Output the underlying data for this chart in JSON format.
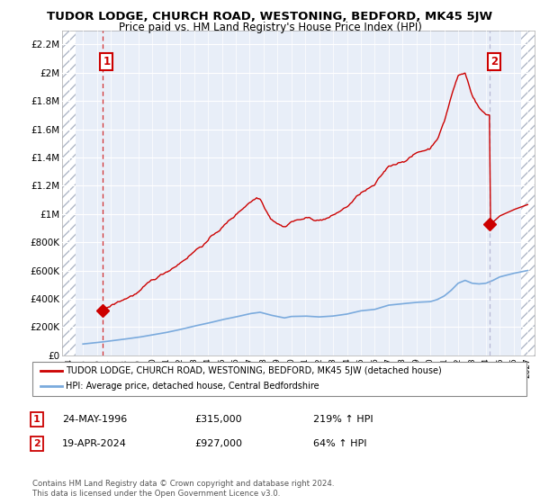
{
  "title": "TUDOR LODGE, CHURCH ROAD, WESTONING, BEDFORD, MK45 5JW",
  "subtitle": "Price paid vs. HM Land Registry's House Price Index (HPI)",
  "ylim": [
    0,
    2300000
  ],
  "yticks": [
    0,
    200000,
    400000,
    600000,
    800000,
    1000000,
    1200000,
    1400000,
    1600000,
    1800000,
    2000000,
    2200000
  ],
  "ytick_labels": [
    "£0",
    "£200K",
    "£400K",
    "£600K",
    "£800K",
    "£1M",
    "£1.2M",
    "£1.4M",
    "£1.6M",
    "£1.8M",
    "£2M",
    "£2.2M"
  ],
  "xlim_start": 1993.5,
  "xlim_end": 2027.5,
  "xtick_years": [
    1994,
    1995,
    1996,
    1997,
    1998,
    1999,
    2000,
    2001,
    2002,
    2003,
    2004,
    2005,
    2006,
    2007,
    2008,
    2009,
    2010,
    2011,
    2012,
    2013,
    2014,
    2015,
    2016,
    2017,
    2018,
    2019,
    2020,
    2021,
    2022,
    2023,
    2024,
    2025,
    2026,
    2027
  ],
  "property_color": "#cc0000",
  "hpi_color": "#7aaadd",
  "point1_x": 1996.39,
  "point1_y": 315000,
  "point2_x": 2024.29,
  "point2_y": 927000,
  "legend_property": "TUDOR LODGE, CHURCH ROAD, WESTONING, BEDFORD, MK45 5JW (detached house)",
  "legend_hpi": "HPI: Average price, detached house, Central Bedfordshire",
  "annotation1_date": "24-MAY-1996",
  "annotation1_price": "£315,000",
  "annotation1_hpi": "219% ↑ HPI",
  "annotation2_date": "19-APR-2024",
  "annotation2_price": "£927,000",
  "annotation2_hpi": "64% ↑ HPI",
  "footer": "Contains HM Land Registry data © Crown copyright and database right 2024.\nThis data is licensed under the Open Government Licence v3.0.",
  "background_color": "#ffffff",
  "plot_bg": "#e8eef8"
}
